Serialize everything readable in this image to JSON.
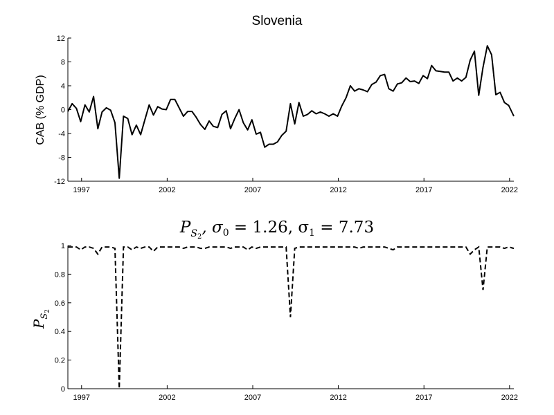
{
  "chart_data": [
    {
      "type": "line",
      "title": "Slovenia",
      "xlabel": "",
      "ylabel": "CAB (% GDP)",
      "xlim": [
        1996.2,
        2022.25
      ],
      "ylim": [
        -12,
        12
      ],
      "x_ticks": [
        1997,
        2002,
        2007,
        2012,
        2017,
        2022
      ],
      "x_tick_labels": [
        "1997",
        "2002",
        "2007",
        "2012",
        "2017",
        "2022"
      ],
      "y_ticks": [
        -12,
        -8,
        -4,
        0,
        4,
        8,
        12
      ],
      "y_tick_labels": [
        "-12",
        "-8",
        "-4",
        "0",
        "4",
        "8",
        "12"
      ],
      "grid": false,
      "series": [
        {
          "line_style": "solid",
          "x": [
            1996.2,
            1996.45,
            1996.7,
            1996.95,
            1997.2,
            1997.45,
            1997.7,
            1997.95,
            1998.2,
            1998.45,
            1998.7,
            1998.95,
            1999.2,
            1999.45,
            1999.7,
            1999.95,
            2000.2,
            2000.45,
            2000.7,
            2000.95,
            2001.2,
            2001.45,
            2001.7,
            2001.95,
            2002.2,
            2002.45,
            2002.7,
            2002.95,
            2003.2,
            2003.45,
            2003.7,
            2003.95,
            2004.2,
            2004.45,
            2004.7,
            2004.95,
            2005.2,
            2005.45,
            2005.7,
            2005.95,
            2006.2,
            2006.45,
            2006.7,
            2006.95,
            2007.2,
            2007.45,
            2007.7,
            2007.95,
            2008.2,
            2008.45,
            2008.7,
            2008.95,
            2009.2,
            2009.45,
            2009.7,
            2009.95,
            2010.2,
            2010.45,
            2010.7,
            2010.95,
            2011.2,
            2011.45,
            2011.7,
            2011.95,
            2012.2,
            2012.45,
            2012.7,
            2012.95,
            2013.2,
            2013.45,
            2013.7,
            2013.95,
            2014.2,
            2014.45,
            2014.7,
            2014.95,
            2015.2,
            2015.45,
            2015.7,
            2015.95,
            2016.2,
            2016.45,
            2016.7,
            2016.95,
            2017.2,
            2017.45,
            2017.7,
            2017.95,
            2018.2,
            2018.45,
            2018.7,
            2018.95,
            2019.2,
            2019.45,
            2019.7,
            2019.95,
            2020.2,
            2020.45,
            2020.7,
            2020.95,
            2021.2,
            2021.45,
            2021.7,
            2021.95,
            2022.25
          ],
          "y": [
            -0.3,
            1.0,
            0.2,
            -2.0,
            0.8,
            -0.4,
            2.2,
            -3.2,
            -0.4,
            0.3,
            -0.1,
            -2.2,
            -11.5,
            -1.1,
            -1.5,
            -4.2,
            -2.6,
            -4.2,
            -1.7,
            0.8,
            -0.9,
            0.5,
            0.1,
            0.0,
            1.7,
            1.7,
            0.3,
            -1.1,
            -0.3,
            -0.3,
            -1.3,
            -2.5,
            -3.3,
            -1.9,
            -2.8,
            -3.0,
            -0.8,
            -0.2,
            -3.2,
            -1.5,
            0.0,
            -2.2,
            -3.4,
            -1.7,
            -4.1,
            -3.8,
            -6.3,
            -5.8,
            -5.8,
            -5.4,
            -4.3,
            -3.6,
            1.0,
            -2.4,
            1.2,
            -1.1,
            -0.8,
            -0.2,
            -0.7,
            -0.4,
            -0.7,
            -1.1,
            -0.7,
            -1.1,
            0.6,
            2.0,
            4.0,
            3.1,
            3.5,
            3.3,
            3.0,
            4.2,
            4.6,
            5.7,
            5.9,
            3.5,
            3.1,
            4.3,
            4.5,
            5.3,
            4.7,
            4.8,
            4.4,
            5.7,
            5.2,
            7.4,
            6.5,
            6.4,
            6.3,
            6.3,
            4.8,
            5.3,
            4.8,
            5.4,
            8.3,
            9.8,
            2.4,
            7.1,
            10.7,
            9.2,
            2.5,
            2.9,
            1.2,
            0.7,
            -1.1
          ]
        }
      ]
    },
    {
      "type": "line",
      "title": "P_{S_2}, σ_0 = 1.26, σ_1 = 7.73",
      "title_parts": {
        "p": "P",
        "sub_s": "S",
        "sub_2": "2",
        "rest": ", σ",
        "sub0": "0",
        "eq0": " = 1.26, σ",
        "sub1": "1",
        "eq1": " = 7.73"
      },
      "xlabel": "",
      "ylabel": "P_{S_2}",
      "ylabel_parts": {
        "p": "P",
        "sub_s": "S",
        "sub_2": "2"
      },
      "xlim": [
        1996.2,
        2022.25
      ],
      "ylim": [
        0,
        1
      ],
      "x_ticks": [
        1997,
        2002,
        2007,
        2012,
        2017,
        2022
      ],
      "x_tick_labels": [
        "1997",
        "2002",
        "2007",
        "2012",
        "2017",
        "2022"
      ],
      "y_ticks": [
        0,
        0.2,
        0.4,
        0.6,
        0.8,
        1
      ],
      "y_tick_labels": [
        "0",
        "0.2",
        "0.4",
        "0.6",
        "0.8",
        "1"
      ],
      "grid": false,
      "series": [
        {
          "line_style": "dashed",
          "x": [
            1996.2,
            1996.45,
            1996.7,
            1996.95,
            1997.2,
            1997.45,
            1997.7,
            1997.95,
            1998.2,
            1998.45,
            1998.7,
            1998.95,
            1999.2,
            1999.45,
            1999.7,
            1999.95,
            2000.2,
            2000.45,
            2000.7,
            2000.95,
            2001.2,
            2001.45,
            2001.7,
            2001.95,
            2002.2,
            2002.45,
            2002.7,
            2002.95,
            2003.2,
            2003.45,
            2003.7,
            2003.95,
            2004.2,
            2004.45,
            2004.7,
            2004.95,
            2005.2,
            2005.45,
            2005.7,
            2005.95,
            2006.2,
            2006.45,
            2006.7,
            2006.95,
            2007.2,
            2007.45,
            2007.7,
            2007.95,
            2008.2,
            2008.45,
            2008.7,
            2008.95,
            2009.2,
            2009.45,
            2009.7,
            2009.95,
            2010.2,
            2010.45,
            2010.7,
            2010.95,
            2011.2,
            2011.45,
            2011.7,
            2011.95,
            2012.2,
            2012.45,
            2012.7,
            2012.95,
            2013.2,
            2013.45,
            2013.7,
            2013.95,
            2014.2,
            2014.45,
            2014.7,
            2014.95,
            2015.2,
            2015.45,
            2015.7,
            2015.95,
            2016.2,
            2016.45,
            2016.7,
            2016.95,
            2017.2,
            2017.45,
            2017.7,
            2017.95,
            2018.2,
            2018.45,
            2018.7,
            2018.95,
            2019.2,
            2019.45,
            2019.7,
            2019.95,
            2020.2,
            2020.45,
            2020.7,
            2020.95,
            2021.2,
            2021.45,
            2021.7,
            2021.95,
            2022.25
          ],
          "y": [
            0.99,
            0.99,
            0.99,
            0.97,
            0.99,
            0.99,
            0.98,
            0.94,
            0.99,
            0.99,
            0.99,
            0.98,
            0.0,
            0.99,
            0.99,
            0.97,
            0.99,
            0.98,
            0.99,
            0.99,
            0.96,
            0.99,
            0.99,
            0.99,
            0.99,
            0.99,
            0.99,
            0.98,
            0.99,
            0.99,
            0.99,
            0.98,
            0.98,
            0.99,
            0.99,
            0.99,
            0.99,
            0.99,
            0.98,
            0.99,
            0.99,
            0.99,
            0.97,
            0.99,
            0.98,
            0.99,
            0.99,
            0.99,
            0.99,
            0.99,
            0.99,
            0.99,
            0.5,
            0.98,
            0.99,
            0.99,
            0.99,
            0.99,
            0.99,
            0.99,
            0.99,
            0.99,
            0.99,
            0.99,
            0.99,
            0.99,
            0.99,
            0.99,
            0.98,
            0.99,
            0.99,
            0.99,
            0.99,
            0.99,
            0.99,
            0.98,
            0.97,
            0.99,
            0.99,
            0.99,
            0.99,
            0.99,
            0.99,
            0.99,
            0.99,
            0.99,
            0.99,
            0.99,
            0.99,
            0.99,
            0.99,
            0.99,
            0.99,
            0.99,
            0.94,
            0.97,
            0.99,
            0.69,
            0.99,
            0.99,
            0.99,
            0.99,
            0.98,
            0.99,
            0.98
          ]
        }
      ]
    }
  ]
}
